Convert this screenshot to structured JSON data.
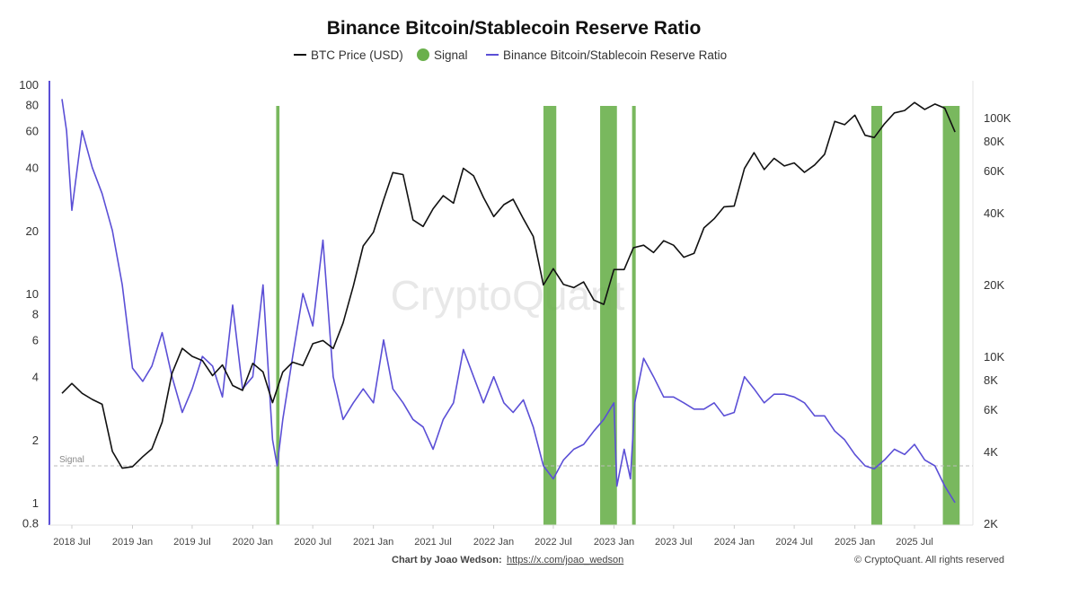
{
  "chart_data": {
    "type": "line",
    "title": "Binance Bitcoin/Stablecoin Reserve Ratio",
    "legend": {
      "placement": "top",
      "entries": [
        "BTC Price (USD)",
        "Signal",
        "Binance Bitcoin/Stablecoin Reserve Ratio"
      ]
    },
    "colors": {
      "btc": "#111111",
      "signal": "#6ab04c",
      "ratio": "#5b4fd6",
      "signal_line": "#bbbbbb"
    },
    "left_axis": {
      "scale": "log",
      "range": [
        0.8,
        100
      ],
      "ticks": [
        "100",
        "80",
        "60",
        "40",
        "20",
        "10",
        "8",
        "6",
        "4",
        "2",
        "1",
        "0.8"
      ],
      "tick_values": [
        100,
        80,
        60,
        40,
        20,
        10,
        8,
        6,
        4,
        2,
        1,
        0.8
      ]
    },
    "right_axis": {
      "scale": "log",
      "range": [
        2000,
        130000
      ],
      "ticks": [
        "100K",
        "80K",
        "60K",
        "40K",
        "20K",
        "10K",
        "8K",
        "6K",
        "4K",
        "2K"
      ],
      "tick_values": [
        100000,
        80000,
        60000,
        40000,
        20000,
        10000,
        8000,
        6000,
        4000,
        2000
      ]
    },
    "x_axis": {
      "type": "date",
      "ticks": [
        "2018 Jul",
        "2019 Jan",
        "2019 Jul",
        "2020 Jan",
        "2020 Jul",
        "2021 Jan",
        "2021 Jul",
        "2022 Jan",
        "2022 Jul",
        "2023 Jan",
        "2023 Jul",
        "2024 Jan",
        "2024 Jul",
        "2025 Jan",
        "2025 Jul"
      ],
      "tick_dates": [
        "2018-07-01",
        "2019-01-01",
        "2019-07-01",
        "2020-01-01",
        "2020-07-01",
        "2021-01-01",
        "2021-07-01",
        "2022-01-01",
        "2022-07-01",
        "2023-01-01",
        "2023-07-01",
        "2024-01-01",
        "2024-07-01",
        "2025-01-01",
        "2025-07-01"
      ]
    },
    "signal_threshold": {
      "label": "Signal",
      "value": 1.5
    },
    "grid": false,
    "series": [
      {
        "name": "BTC Price (USD)",
        "axis": "right",
        "x": [
          "2018-06",
          "2018-07",
          "2018-08",
          "2018-09",
          "2018-10",
          "2018-11",
          "2018-12",
          "2019-01",
          "2019-02",
          "2019-03",
          "2019-04",
          "2019-05",
          "2019-06",
          "2019-07",
          "2019-08",
          "2019-09",
          "2019-10",
          "2019-11",
          "2019-12",
          "2020-01",
          "2020-02",
          "2020-03",
          "2020-04",
          "2020-05",
          "2020-06",
          "2020-07",
          "2020-08",
          "2020-09",
          "2020-10",
          "2020-11",
          "2020-12",
          "2021-01",
          "2021-02",
          "2021-03",
          "2021-04",
          "2021-05",
          "2021-06",
          "2021-07",
          "2021-08",
          "2021-09",
          "2021-10",
          "2021-11",
          "2021-12",
          "2022-01",
          "2022-02",
          "2022-03",
          "2022-04",
          "2022-05",
          "2022-06",
          "2022-07",
          "2022-08",
          "2022-09",
          "2022-10",
          "2022-11",
          "2022-12",
          "2023-01",
          "2023-02",
          "2023-03",
          "2023-04",
          "2023-05",
          "2023-06",
          "2023-07",
          "2023-08",
          "2023-09",
          "2023-10",
          "2023-11",
          "2023-12",
          "2024-01",
          "2024-02",
          "2024-03",
          "2024-04",
          "2024-05",
          "2024-06",
          "2024-07",
          "2024-08",
          "2024-09",
          "2024-10",
          "2024-11",
          "2024-12",
          "2025-01",
          "2025-02",
          "2025-03",
          "2025-04",
          "2025-05",
          "2025-06",
          "2025-07",
          "2025-08",
          "2025-09",
          "2025-10",
          "2025-11"
        ],
        "values": [
          7000,
          7700,
          7000,
          6600,
          6300,
          4000,
          3400,
          3450,
          3800,
          4100,
          5300,
          8500,
          10800,
          10000,
          9600,
          8300,
          9200,
          7550,
          7200,
          9350,
          8600,
          6400,
          8600,
          9450,
          9150,
          11300,
          11650,
          10780,
          13800,
          19700,
          29000,
          33100,
          45200,
          58800,
          57700,
          37300,
          35000,
          41500,
          47100,
          43800,
          61300,
          57000,
          46300,
          38500,
          43200,
          45500,
          37700,
          31800,
          19900,
          23300,
          20000,
          19400,
          20500,
          17200,
          16500,
          23100,
          23100,
          28500,
          29200,
          27200,
          30500,
          29200,
          26000,
          27000,
          34500,
          37700,
          42300,
          42600,
          61200,
          71300,
          60600,
          67500,
          62700,
          64600,
          59000,
          63300,
          70200,
          96400,
          93400,
          102400,
          84300,
          82500,
          94200,
          104600,
          107100,
          115700,
          108200,
          114000,
          109500,
          87000
        ]
      },
      {
        "name": "Binance Bitcoin/Stablecoin Reserve Ratio",
        "axis": "left",
        "x": [
          "2018-06-01",
          "2018-06-15",
          "2018-07-01",
          "2018-08-01",
          "2018-09-01",
          "2018-10-01",
          "2018-11-01",
          "2018-12-01",
          "2019-01-01",
          "2019-02-01",
          "2019-03-01",
          "2019-04-01",
          "2019-05-01",
          "2019-06-01",
          "2019-07-01",
          "2019-08-01",
          "2019-09-01",
          "2019-10-01",
          "2019-11-01",
          "2019-12-01",
          "2020-01-01",
          "2020-02-01",
          "2020-03-01",
          "2020-03-15",
          "2020-04-01",
          "2020-05-01",
          "2020-06-01",
          "2020-07-01",
          "2020-08-01",
          "2020-09-01",
          "2020-10-01",
          "2020-11-01",
          "2020-12-01",
          "2021-01-01",
          "2021-02-01",
          "2021-03-01",
          "2021-04-01",
          "2021-05-01",
          "2021-06-01",
          "2021-07-01",
          "2021-08-01",
          "2021-09-01",
          "2021-10-01",
          "2021-11-01",
          "2021-12-01",
          "2022-01-01",
          "2022-02-01",
          "2022-03-01",
          "2022-04-01",
          "2022-05-01",
          "2022-06-01",
          "2022-07-01",
          "2022-08-01",
          "2022-09-01",
          "2022-10-01",
          "2022-11-01",
          "2022-12-01",
          "2023-01-01",
          "2023-01-10",
          "2023-02-01",
          "2023-02-20",
          "2023-03-05",
          "2023-04-01",
          "2023-05-01",
          "2023-06-01",
          "2023-07-01",
          "2023-08-01",
          "2023-09-01",
          "2023-10-01",
          "2023-11-01",
          "2023-12-01",
          "2024-01-01",
          "2024-02-01",
          "2024-03-01",
          "2024-04-01",
          "2024-05-01",
          "2024-06-01",
          "2024-07-01",
          "2024-08-01",
          "2024-09-01",
          "2024-10-01",
          "2024-11-01",
          "2024-12-01",
          "2025-01-01",
          "2025-02-01",
          "2025-03-01",
          "2025-04-01",
          "2025-05-01",
          "2025-06-01",
          "2025-07-01",
          "2025-08-01",
          "2025-09-01",
          "2025-10-01",
          "2025-11-01"
        ],
        "values": [
          85,
          60,
          25,
          60,
          40,
          30,
          20,
          11,
          4.4,
          3.8,
          4.5,
          6.5,
          4,
          2.7,
          3.5,
          5,
          4.5,
          3.2,
          8.8,
          3.5,
          4,
          11,
          2,
          1.5,
          2.5,
          5,
          10,
          7,
          18,
          4,
          2.5,
          3,
          3.5,
          3,
          6,
          3.5,
          3,
          2.5,
          2.3,
          1.8,
          2.5,
          3,
          5.4,
          4,
          3,
          4,
          3,
          2.7,
          3.1,
          2.3,
          1.5,
          1.3,
          1.6,
          1.8,
          1.9,
          2.2,
          2.5,
          3,
          1.2,
          1.8,
          1.3,
          3,
          4.9,
          4,
          3.2,
          3.2,
          3,
          2.8,
          2.8,
          3,
          2.6,
          2.7,
          4,
          3.5,
          3,
          3.3,
          3.3,
          3.2,
          3,
          2.6,
          2.6,
          2.2,
          2,
          1.7,
          1.5,
          1.45,
          1.6,
          1.8,
          1.7,
          1.9,
          1.6,
          1.5,
          1.2,
          1.0
        ]
      }
    ],
    "signal_periods": [
      [
        "2020-03-12",
        "2020-03-22"
      ],
      [
        "2022-06-01",
        "2022-07-10"
      ],
      [
        "2022-11-20",
        "2023-01-10"
      ],
      [
        "2023-02-25",
        "2023-03-08"
      ],
      [
        "2025-02-20",
        "2025-03-25"
      ],
      [
        "2025-09-25",
        "2025-11-15"
      ]
    ]
  },
  "watermark": "CryptoQuant",
  "footer": {
    "credit_label": "Chart by Joao Wedson:",
    "credit_link": "https://x.com/joao_wedson",
    "copyright": "© CryptoQuant. All rights reserved"
  }
}
